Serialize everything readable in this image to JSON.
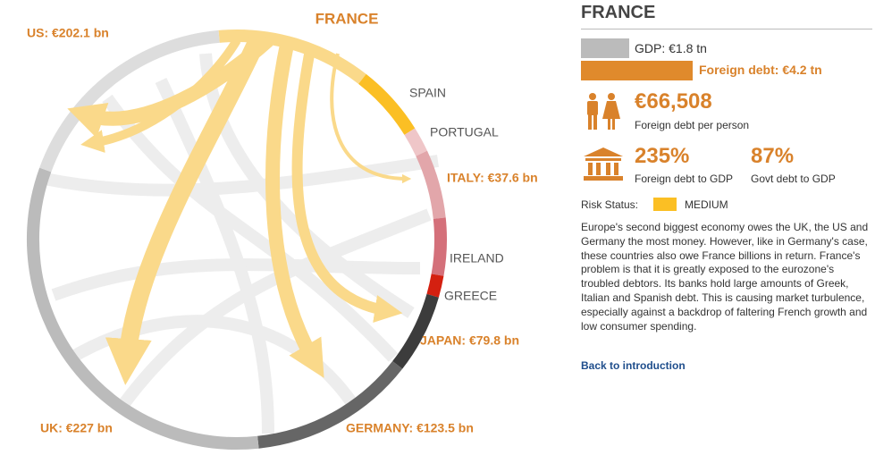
{
  "diagram": {
    "title": "FRANCE",
    "labels": [
      "US: €202.1 bn",
      "SPAIN",
      "PORTUGAL",
      "ITALY: €37.6 bn",
      "IRELAND",
      "GREECE",
      "JAPAN: €79.8 bn",
      "GERMANY: €123.5 bn",
      "UK: €227 bn"
    ]
  },
  "panel": {
    "title": "FRANCE",
    "gdp": "GDP: €1.8 tn",
    "foreign_debt": "Foreign debt: €4.2 tn",
    "per_person": "€66,508",
    "per_person_caption": "Foreign debt per person",
    "debt_to_gdp": "235%",
    "debt_to_gdp_caption": "Foreign debt to GDP",
    "govt_debt": "87%",
    "govt_debt_caption": "Govt debt to GDP",
    "risk_label": "Risk Status:",
    "risk_value": "MEDIUM",
    "description": "Europe's second biggest economy owes the UK, the US and Germany the most money. However, like in Germany's case, these countries also owe France billions in return. France's problem is that it is greatly exposed to the eurozone's troubled debtors. Its banks hold large amounts of Greek, Italian and Spanish debt. This is causing market turbulence, especially against a backdrop of faltering French growth and low consumer spending.",
    "link": "Back to introduction"
  }
}
